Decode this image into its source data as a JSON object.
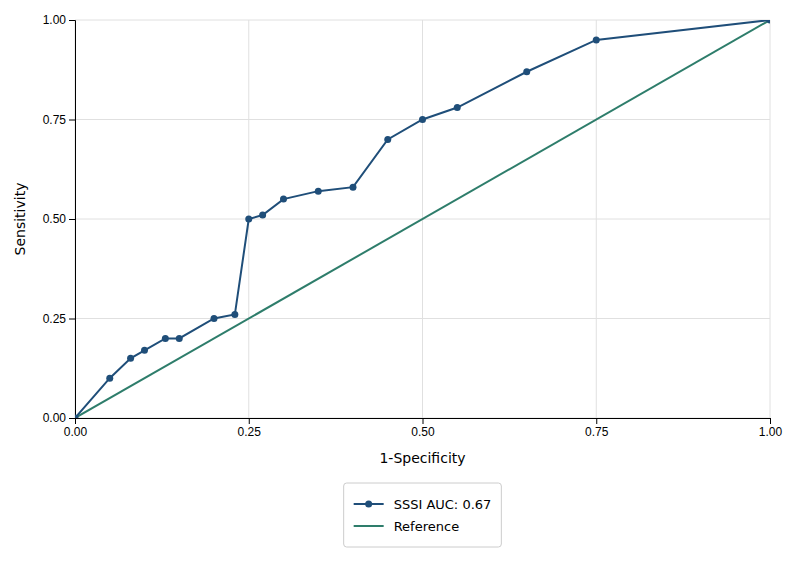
{
  "chart_data": {
    "type": "line",
    "xlabel": "1-Specificity",
    "ylabel": "Sensitivity",
    "series": [
      {
        "name": "SSSI AUC: 0.67",
        "color": "#1f4e79",
        "marker": "circle",
        "x": [
          0.0,
          0.05,
          0.08,
          0.1,
          0.13,
          0.15,
          0.2,
          0.23,
          0.25,
          0.27,
          0.3,
          0.35,
          0.4,
          0.45,
          0.5,
          0.55,
          0.65,
          0.75,
          1.0
        ],
        "values": [
          0.0,
          0.1,
          0.15,
          0.17,
          0.2,
          0.2,
          0.25,
          0.26,
          0.5,
          0.51,
          0.55,
          0.57,
          0.58,
          0.7,
          0.75,
          0.78,
          0.87,
          0.95,
          1.0
        ]
      },
      {
        "name": "Reference",
        "color": "#2e7d6b",
        "x": [
          0.0,
          1.0
        ],
        "values": [
          0.0,
          1.0
        ]
      }
    ],
    "xlim": [
      0.0,
      1.0
    ],
    "ylim": [
      0.0,
      1.0
    ],
    "xticks": [
      {
        "value": 0,
        "label": "0.00"
      },
      0.25,
      {
        "value": 0.5,
        "label": "0.50"
      },
      0.75,
      {
        "value": 1,
        "label": "1.00"
      }
    ],
    "yticks": [
      {
        "value": 0,
        "label": "0.00"
      },
      0.25,
      {
        "value": 0.5,
        "label": "0.50"
      },
      0.75,
      {
        "value": 1,
        "label": "1.00"
      }
    ],
    "grid": true,
    "legend": "bottom"
  }
}
